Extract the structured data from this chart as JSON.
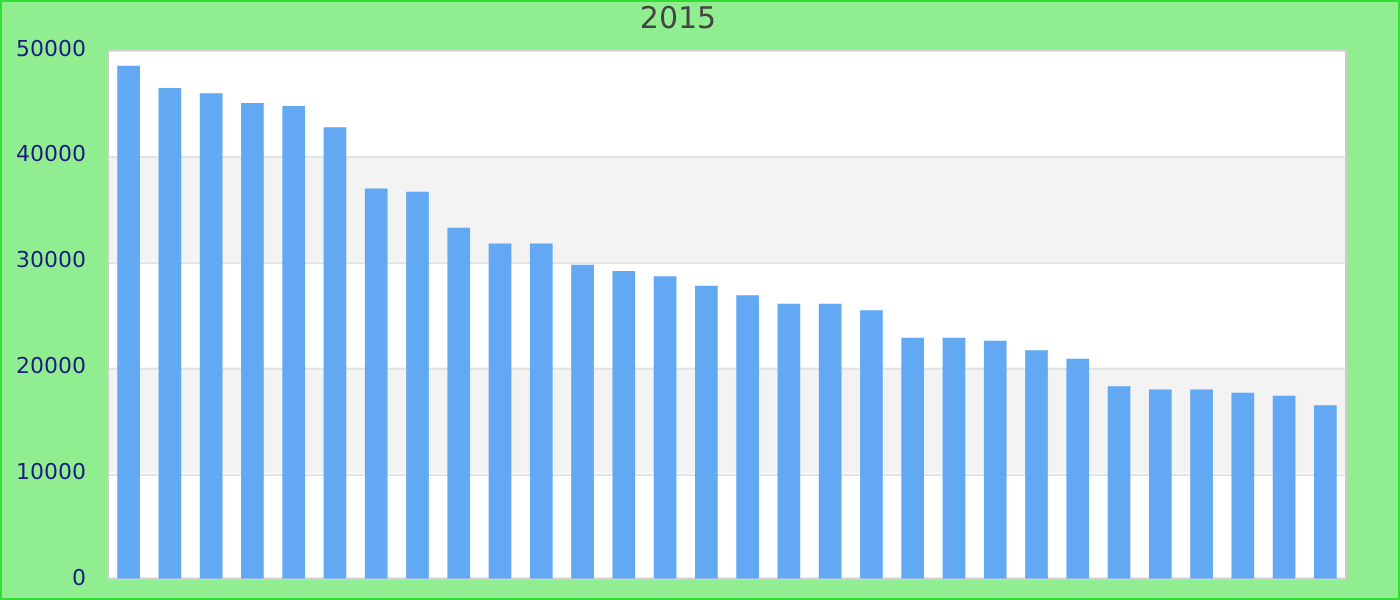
{
  "chart_data": {
    "type": "bar",
    "subtitle": "2015",
    "categories": [
      null,
      null,
      null,
      null,
      null,
      null,
      null,
      null,
      null,
      null,
      null,
      null,
      null,
      null,
      null,
      null,
      null,
      null,
      null,
      null,
      null,
      null,
      null,
      null,
      null,
      null,
      null,
      null,
      null,
      null
    ],
    "values": [
      48500,
      46400,
      45900,
      45000,
      44700,
      42700,
      36900,
      36600,
      33200,
      31700,
      31700,
      29700,
      29100,
      28600,
      27700,
      26800,
      26000,
      26000,
      25400,
      22800,
      22800,
      22500,
      21600,
      20800,
      18200,
      17900,
      17900,
      17600,
      17300,
      16400
    ],
    "color": "#62a8f2",
    "ylim": [
      0,
      50000
    ],
    "yticks": [
      0,
      10000,
      20000,
      30000,
      40000,
      50000
    ],
    "grid": "y",
    "tick_labels": "y"
  }
}
